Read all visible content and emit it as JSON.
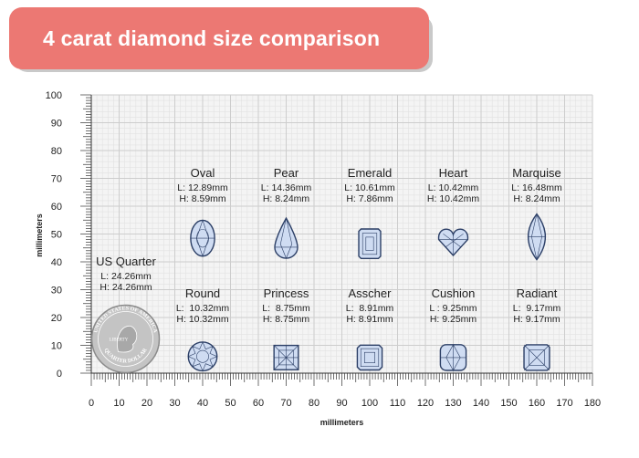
{
  "title": "4 carat diamond size comparison",
  "axes": {
    "x_label": "millimeters",
    "y_label": "millimeters",
    "x_ticks": [
      "0",
      "10",
      "20",
      "30",
      "40",
      "50",
      "60",
      "70",
      "80",
      "90",
      "100",
      "110",
      "120",
      "130",
      "140",
      "150",
      "160",
      "170",
      "180"
    ],
    "y_ticks": [
      "0",
      "10",
      "20",
      "30",
      "40",
      "50",
      "60",
      "70",
      "80",
      "90",
      "100"
    ],
    "x_range": [
      0,
      180
    ],
    "y_range": [
      0,
      100
    ]
  },
  "quarter": {
    "name": "US Quarter",
    "length": "L: 24.26mm",
    "height": "H: 24.26mm",
    "coin_text_top": "UNITED STATES OF AMERICA",
    "coin_text_bottom": "QUARTER DOLLAR",
    "coin_text_liberty": "LIBERTY"
  },
  "gems": [
    {
      "name": "Oval",
      "length": "L: 12.89mm",
      "height": "H: 8.59mm",
      "shape": "oval"
    },
    {
      "name": "Pear",
      "length": "L: 14.36mm",
      "height": "H: 8.24mm",
      "shape": "pear"
    },
    {
      "name": "Emerald",
      "length": "L: 10.61mm",
      "height": "H: 7.86mm",
      "shape": "emerald"
    },
    {
      "name": "Heart",
      "length": "L: 10.42mm",
      "height": "H: 10.42mm",
      "shape": "heart"
    },
    {
      "name": "Marquise",
      "length": "L: 16.48mm",
      "height": "H: 8.24mm",
      "shape": "marquise"
    },
    {
      "name": "Round",
      "length": "L:  10.32mm",
      "height": "H: 10.32mm",
      "shape": "round"
    },
    {
      "name": "Princess",
      "length": "L:  8.75mm",
      "height": "H: 8.75mm",
      "shape": "princess"
    },
    {
      "name": "Asscher",
      "length": "L:  8.91mm",
      "height": "H: 8.91mm",
      "shape": "asscher"
    },
    {
      "name": "Cushion",
      "length": "L : 9.25mm",
      "height": "H: 9.25mm",
      "shape": "cushion"
    },
    {
      "name": "Radiant",
      "length": "L:  9.17mm",
      "height": "H: 9.17mm",
      "shape": "radiant"
    }
  ],
  "colors": {
    "banner": "#ec7873",
    "gem_fill": "#cfdcf2",
    "gem_stroke": "#2c3f66",
    "coin": "#c4c4c4"
  }
}
